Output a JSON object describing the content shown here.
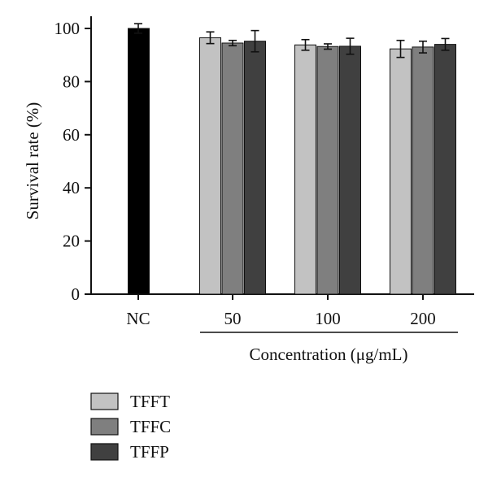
{
  "chart_data": {
    "type": "bar",
    "ylabel": "Survival rate (%)",
    "xlabel": "Concentration (μg/mL)",
    "ylim": [
      0,
      100
    ],
    "yticks": [
      0,
      20,
      40,
      60,
      80,
      100
    ],
    "grid": false,
    "legend_position": "bottom-left",
    "control": {
      "category": "NC",
      "value": 100,
      "error": 1.8,
      "color": "#000000"
    },
    "categories": [
      "50",
      "100",
      "200"
    ],
    "series": [
      {
        "name": "TFFT",
        "color": "#c2c2c2",
        "values": [
          96.5,
          93.8,
          92.3
        ],
        "errors": [
          2.2,
          2.0,
          3.2
        ]
      },
      {
        "name": "TFFC",
        "color": "#7f7f7f",
        "values": [
          94.5,
          93.2,
          93.0
        ],
        "errors": [
          1.0,
          1.0,
          2.2
        ]
      },
      {
        "name": "TFFP",
        "color": "#404040",
        "values": [
          95.2,
          93.3,
          94.0
        ],
        "errors": [
          4.0,
          3.0,
          2.2
        ]
      }
    ]
  }
}
